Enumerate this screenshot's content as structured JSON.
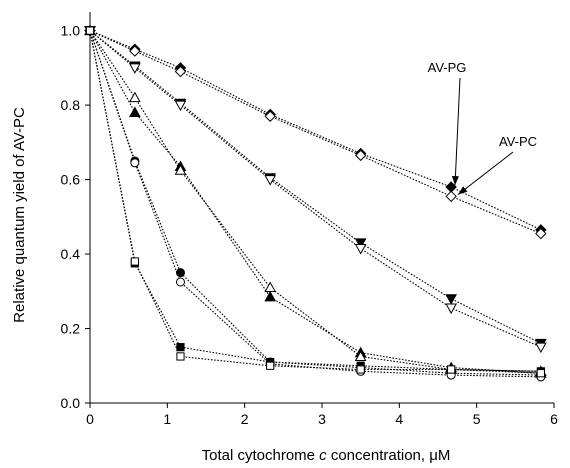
{
  "chart_data": {
    "type": "scatter",
    "xlabel": "Total cytochrome c concentration, μM",
    "xlabel_parts": [
      "Total cytochrome ",
      "c",
      " concentration, μM"
    ],
    "ylabel": "Relative quantum yield of AV-PC",
    "xlim": [
      0,
      6
    ],
    "ylim": [
      0,
      1.05
    ],
    "xticks": [
      0,
      1,
      2,
      3,
      4,
      5,
      6
    ],
    "xtick_labels": [
      "0",
      "1",
      "2",
      "3",
      "4",
      "5",
      "6"
    ],
    "yticks": [
      0,
      0.2,
      0.4,
      0.6,
      0.8,
      1.0
    ],
    "ytick_labels": [
      "0.0",
      "0.2",
      "0.4",
      "0.6",
      "0.8",
      "1.0"
    ],
    "grid": false,
    "line_style": "dotted",
    "series": [
      {
        "marker": "diamond",
        "filled": true,
        "x": [
          0,
          0.58,
          1.17,
          2.33,
          3.5,
          4.67,
          5.83
        ],
        "y": [
          1.0,
          0.95,
          0.9,
          0.775,
          0.67,
          0.58,
          0.465
        ]
      },
      {
        "marker": "diamond",
        "filled": false,
        "x": [
          0,
          0.58,
          1.17,
          2.33,
          3.5,
          4.67,
          5.83
        ],
        "y": [
          1.0,
          0.945,
          0.89,
          0.77,
          0.665,
          0.555,
          0.455
        ]
      },
      {
        "marker": "triangle-down",
        "filled": true,
        "x": [
          0,
          0.58,
          1.17,
          2.33,
          3.5,
          4.67,
          5.83
        ],
        "y": [
          1.0,
          0.905,
          0.805,
          0.605,
          0.43,
          0.28,
          0.16
        ]
      },
      {
        "marker": "triangle-down",
        "filled": false,
        "x": [
          0,
          0.58,
          1.17,
          2.33,
          3.5,
          4.67,
          5.83
        ],
        "y": [
          1.0,
          0.9,
          0.8,
          0.6,
          0.415,
          0.255,
          0.15
        ]
      },
      {
        "marker": "triangle-up",
        "filled": true,
        "x": [
          0,
          0.58,
          1.17,
          2.33,
          3.5,
          4.67,
          5.83
        ],
        "y": [
          1.0,
          0.78,
          0.635,
          0.285,
          0.135,
          0.095,
          0.08
        ]
      },
      {
        "marker": "triangle-up",
        "filled": false,
        "x": [
          0,
          0.58,
          1.17,
          2.33,
          3.5,
          4.67,
          5.83
        ],
        "y": [
          1.0,
          0.82,
          0.625,
          0.31,
          0.125,
          0.09,
          0.085
        ]
      },
      {
        "marker": "circle",
        "filled": true,
        "x": [
          0,
          0.58,
          1.17,
          2.33,
          3.5,
          4.67,
          5.83
        ],
        "y": [
          1.0,
          0.65,
          0.35,
          0.11,
          0.095,
          0.08,
          0.075
        ]
      },
      {
        "marker": "circle",
        "filled": false,
        "x": [
          0,
          0.58,
          1.17,
          2.33,
          3.5,
          4.67,
          5.83
        ],
        "y": [
          1.0,
          0.645,
          0.325,
          0.105,
          0.085,
          0.075,
          0.07
        ]
      },
      {
        "marker": "square",
        "filled": true,
        "x": [
          0,
          0.58,
          1.17,
          2.33,
          3.5,
          4.67,
          5.83
        ],
        "y": [
          1.0,
          0.375,
          0.15,
          0.11,
          0.1,
          0.09,
          0.085
        ]
      },
      {
        "marker": "square",
        "filled": false,
        "x": [
          0,
          0.58,
          1.17,
          2.33,
          3.5,
          4.67,
          5.83
        ],
        "y": [
          1.0,
          0.38,
          0.125,
          0.1,
          0.09,
          0.09,
          0.08
        ]
      }
    ],
    "annotations": [
      {
        "text": "AV-PG",
        "x": 4.72,
        "y": 0.585
      },
      {
        "text": "AV-PC",
        "x": 4.76,
        "y": 0.56
      }
    ]
  }
}
